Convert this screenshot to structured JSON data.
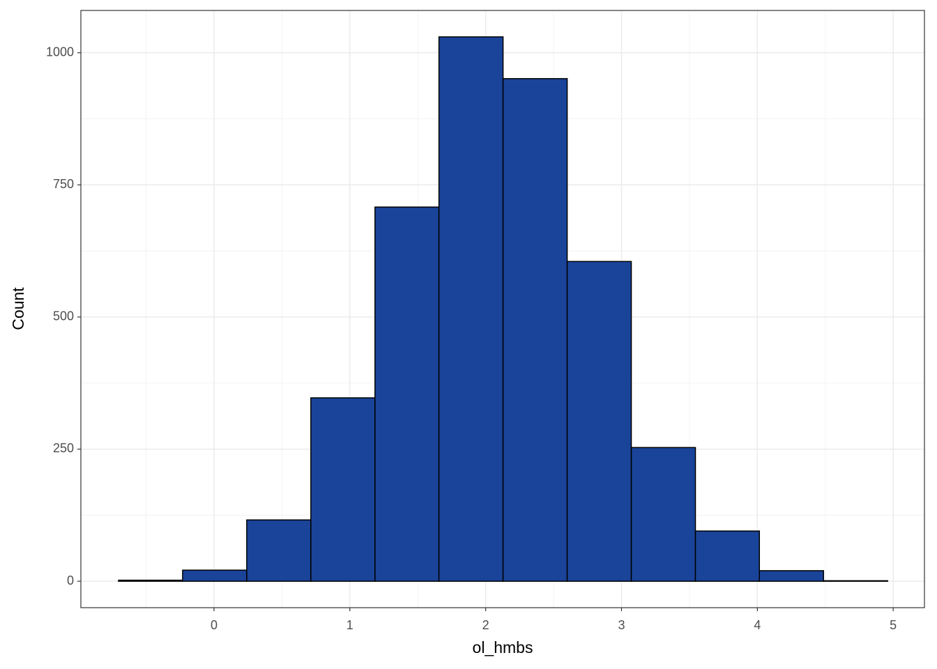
{
  "chart_data": {
    "type": "histogram",
    "x_label": "ol_hmbs",
    "y_label": "Count",
    "bins": [
      -0.703,
      -0.231,
      0.241,
      0.713,
      1.185,
      1.656,
      2.128,
      2.6,
      3.072,
      3.544,
      4.015,
      4.487,
      4.959
    ],
    "values": [
      2,
      21,
      116,
      347,
      708,
      1030,
      951,
      605,
      253,
      95,
      20,
      1
    ],
    "color": "#1a4499",
    "edge_color": "#000000",
    "xlim": [
      -0.98,
      5.23
    ],
    "ylim": [
      -50,
      1080
    ],
    "xticks": [
      0,
      1,
      2,
      3,
      4,
      5
    ],
    "yticks": [
      0,
      250,
      500,
      750,
      1000
    ],
    "grid": true,
    "minor_grid": true
  }
}
